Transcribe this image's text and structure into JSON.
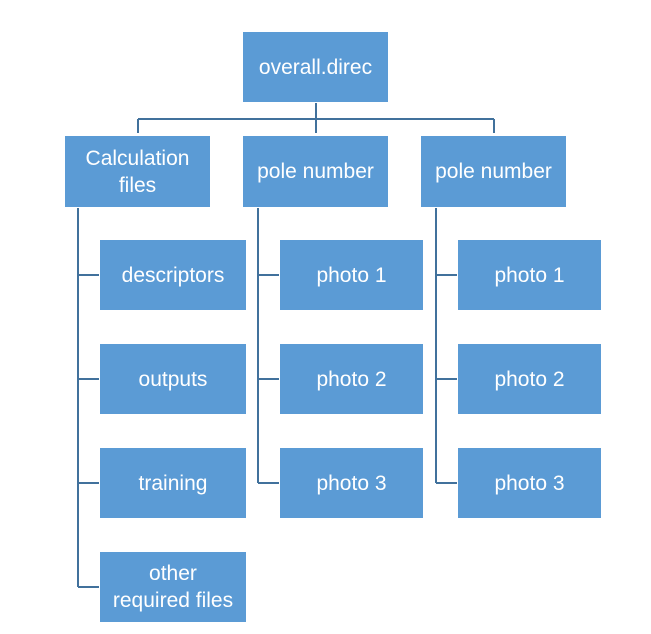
{
  "colors": {
    "box_fill": "#5b9bd5",
    "connector": "#41719c",
    "text": "#ffffff",
    "highlight": "#7f8fa0"
  },
  "root": {
    "label": "overall.direc"
  },
  "branches": [
    {
      "label": "Calculation\nfiles",
      "children": [
        "descriptors",
        "outputs",
        "training",
        "other\nrequired files"
      ]
    },
    {
      "label": "pole number",
      "children": [
        "photo 1",
        "photo 2",
        "photo 3"
      ]
    },
    {
      "label": "pole number",
      "children": [
        "photo 1",
        "photo 2",
        "photo 3"
      ]
    }
  ]
}
